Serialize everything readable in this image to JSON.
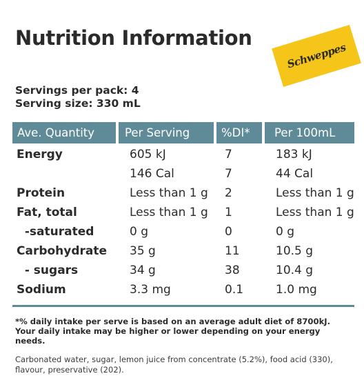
{
  "title": "Nutrition Information",
  "brand_logo_text": "Schweppes",
  "colors": {
    "header_bg": "#5f8b99",
    "logo_bg": "#f6c51a"
  },
  "servings_per_pack": "Servings per pack: 4",
  "serving_size": "Serving size: 330 mL",
  "table": {
    "headers": [
      "Ave. Quantity",
      "Per Serving",
      "%DI*",
      "Per 100mL"
    ],
    "rows": [
      {
        "label": "Energy",
        "per_serving": "605 kJ",
        "di": "7",
        "per_100ml": "183 kJ"
      },
      {
        "label": "",
        "per_serving": "146 Cal",
        "di": "7",
        "per_100ml": "44 Cal"
      },
      {
        "label": "Protein",
        "per_serving": "Less than 1 g",
        "di": "2",
        "per_100ml": "Less than 1 g"
      },
      {
        "label": "Fat, total",
        "per_serving": "Less than 1 g",
        "di": "1",
        "per_100ml": "Less than 1 g"
      },
      {
        "label": "  -saturated",
        "per_serving": "0 g",
        "di": "0",
        "per_100ml": "0 g"
      },
      {
        "label": "Carbohydrate",
        "per_serving": "35 g",
        "di": "11",
        "per_100ml": "10.5 g"
      },
      {
        "label": "  - sugars",
        "per_serving": "34 g",
        "di": "38",
        "per_100ml": "10.4 g"
      },
      {
        "label": "Sodium",
        "per_serving": "3.3 mg",
        "di": "0.1",
        "per_100ml": "1.0 mg"
      }
    ]
  },
  "footnote": "*% daily intake per serve is based on an average adult diet of 8700kJ. Your daily intake may be higher or lower depending on your energy needs.",
  "ingredients": "Carbonated water, sugar, lemon juice from concentrate (5.2%), food acid (330), flavour, preservative (202)."
}
